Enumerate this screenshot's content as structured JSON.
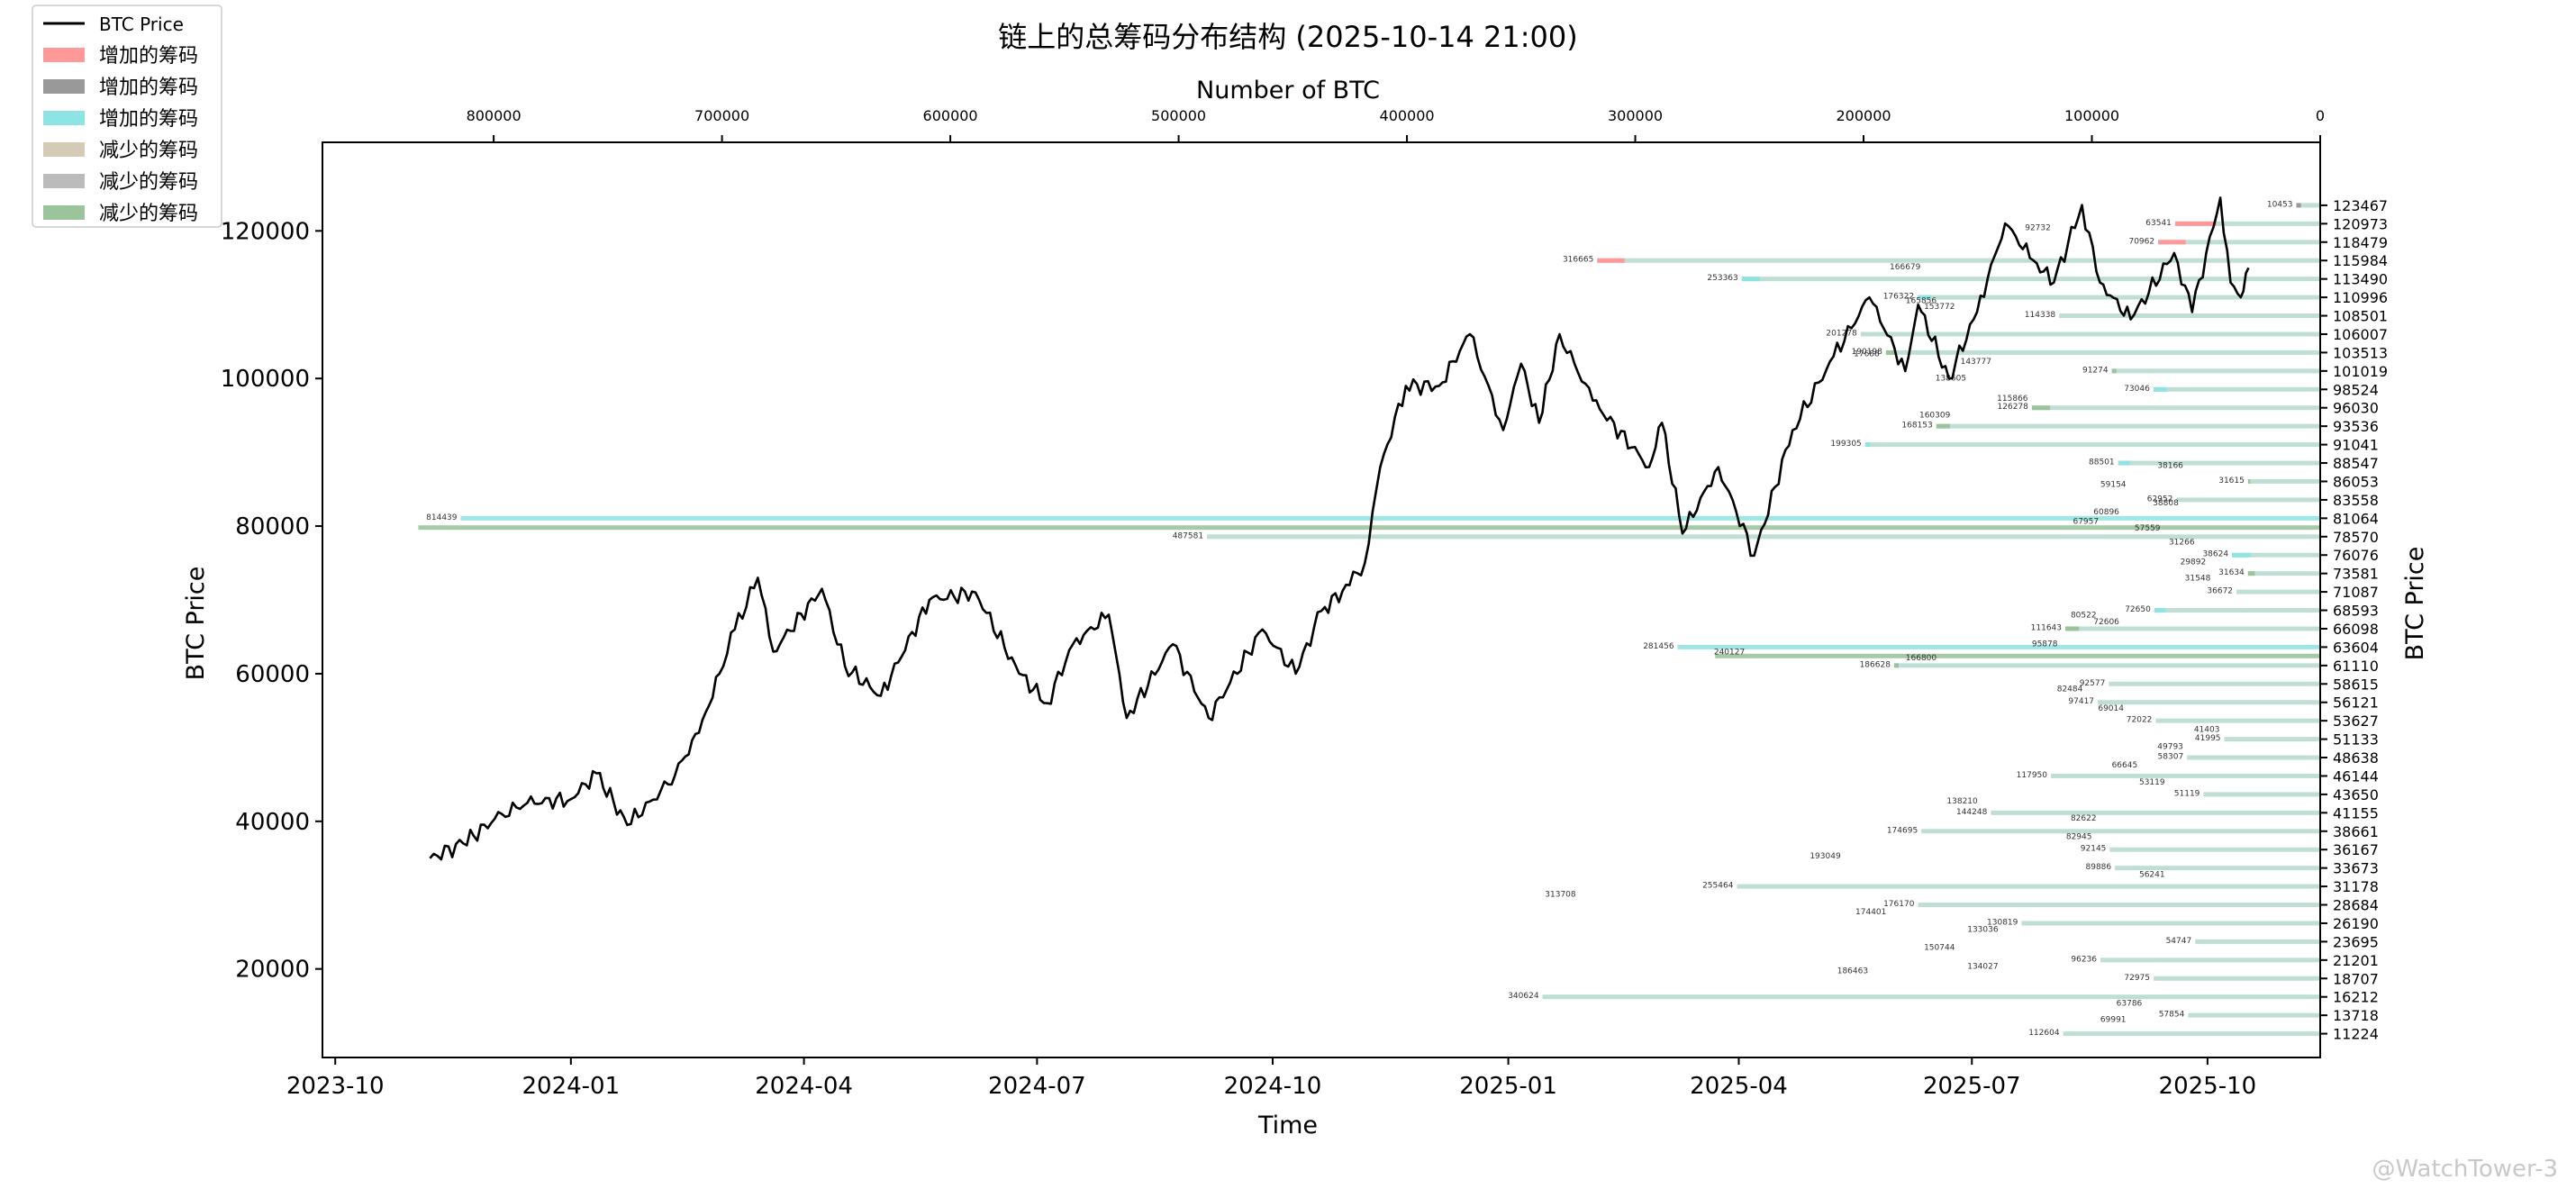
{
  "chart_data": {
    "type": "line",
    "title": "链上的总筹码分布结构 (2025-10-14 21:00)",
    "xlabel": "Time",
    "ylabel": "BTC Price",
    "ylabel_right": "BTC Price",
    "top_xlabel": "Number of BTC",
    "ylim": [
      8000,
      132000
    ],
    "xlim": [
      "2023-09-26",
      "2025-11-14"
    ],
    "top_xlim": [
      875000,
      0
    ],
    "x_ticks": [
      "2023-10",
      "2024-01",
      "2024-04",
      "2024-07",
      "2024-10",
      "2025-01",
      "2025-04",
      "2025-07",
      "2025-10"
    ],
    "x_tick_dates": [
      "2023-10-01",
      "2024-01-01",
      "2024-04-01",
      "2024-07-01",
      "2024-10-01",
      "2025-01-01",
      "2025-04-01",
      "2025-07-01",
      "2025-10-01"
    ],
    "y_ticks": [
      20000,
      40000,
      60000,
      80000,
      100000,
      120000
    ],
    "top_ticks": [
      800000,
      700000,
      600000,
      500000,
      400000,
      300000,
      200000,
      100000,
      0
    ],
    "legend": [
      {
        "label": "BTC Price",
        "kind": "line",
        "color": "#000000"
      },
      {
        "label": "增加的筹码",
        "kind": "patch",
        "color": "#ff9999"
      },
      {
        "label": "增加的筹码",
        "kind": "patch",
        "color": "#999999"
      },
      {
        "label": "增加的筹码",
        "kind": "patch",
        "color": "#8ee3e3"
      },
      {
        "label": "减少的筹码",
        "kind": "patch",
        "color": "#d3cbb6"
      },
      {
        "label": "减少的筹码",
        "kind": "patch",
        "color": "#bbbbbb"
      },
      {
        "label": "减少的筹码",
        "kind": "patch",
        "color": "#9cc49c"
      }
    ],
    "price_series": {
      "name": "BTC Price",
      "color": "#000000",
      "points": [
        [
          "2023-11-07",
          35000
        ],
        [
          "2023-11-20",
          37000
        ],
        [
          "2023-12-05",
          41000
        ],
        [
          "2023-12-15",
          42500
        ],
        [
          "2024-01-01",
          43000
        ],
        [
          "2024-01-11",
          46500
        ],
        [
          "2024-01-23",
          39500
        ],
        [
          "2024-02-08",
          45000
        ],
        [
          "2024-02-20",
          52000
        ],
        [
          "2024-02-28",
          60000
        ],
        [
          "2024-03-05",
          66000
        ],
        [
          "2024-03-14",
          73000
        ],
        [
          "2024-03-20",
          63000
        ],
        [
          "2024-04-08",
          71500
        ],
        [
          "2024-04-17",
          61000
        ],
        [
          "2024-05-01",
          57000
        ],
        [
          "2024-05-20",
          70000
        ],
        [
          "2024-06-07",
          71000
        ],
        [
          "2024-06-24",
          60000
        ],
        [
          "2024-07-05",
          56000
        ],
        [
          "2024-07-15",
          64000
        ],
        [
          "2024-07-29",
          68000
        ],
        [
          "2024-08-05",
          54000
        ],
        [
          "2024-08-23",
          64000
        ],
        [
          "2024-09-06",
          54000
        ],
        [
          "2024-09-27",
          66000
        ],
        [
          "2024-10-10",
          60000
        ],
        [
          "2024-10-20",
          68500
        ],
        [
          "2024-10-31",
          72000
        ],
        [
          "2024-11-06",
          75000
        ],
        [
          "2024-11-12",
          88000
        ],
        [
          "2024-11-22",
          99000
        ],
        [
          "2024-12-05",
          99000
        ],
        [
          "2024-12-17",
          106000
        ],
        [
          "2024-12-30",
          93000
        ],
        [
          "2025-01-06",
          102000
        ],
        [
          "2025-01-13",
          94000
        ],
        [
          "2025-01-21",
          106000
        ],
        [
          "2025-02-03",
          97000
        ],
        [
          "2025-02-25",
          88000
        ],
        [
          "2025-03-02",
          94000
        ],
        [
          "2025-03-10",
          79000
        ],
        [
          "2025-03-24",
          88000
        ],
        [
          "2025-04-07",
          76000
        ],
        [
          "2025-04-22",
          93000
        ],
        [
          "2025-05-08",
          103000
        ],
        [
          "2025-05-22",
          111000
        ],
        [
          "2025-06-05",
          101000
        ],
        [
          "2025-06-10",
          110000
        ],
        [
          "2025-06-22",
          100000
        ],
        [
          "2025-07-03",
          109000
        ],
        [
          "2025-07-14",
          121000
        ],
        [
          "2025-07-25",
          116000
        ],
        [
          "2025-08-02",
          113000
        ],
        [
          "2025-08-13",
          123500
        ],
        [
          "2025-08-20",
          113000
        ],
        [
          "2025-09-01",
          108000
        ],
        [
          "2025-09-18",
          117000
        ],
        [
          "2025-09-25",
          109000
        ],
        [
          "2025-10-06",
          124500
        ],
        [
          "2025-10-10",
          113000
        ],
        [
          "2025-10-14",
          111000
        ],
        [
          "2025-10-17",
          115000
        ]
      ]
    },
    "distribution_bars": [
      {
        "price": 123467,
        "btc": 10453,
        "added": 2000,
        "added_color": "#999999"
      },
      {
        "price": 120973,
        "btc": 63541,
        "added": 18000,
        "added_color": "#ff9999"
      },
      {
        "price": 118479,
        "btc": 70962,
        "added": 12000,
        "added_color": "#ff9999"
      },
      {
        "price": 115984,
        "btc": 316665,
        "added": 12000,
        "added_color": "#ff9999"
      },
      {
        "price": 113490,
        "btc": 253363,
        "added": 8000,
        "added_color": "#8ee3e3"
      },
      {
        "price": 110996,
        "btc": 176322,
        "added": 6000,
        "added_color": "#8ee3e3"
      },
      {
        "price": 108501,
        "btc": 114338,
        "added": 0
      },
      {
        "price": 106007,
        "btc": 201278,
        "added": 0
      },
      {
        "price": 103513,
        "btc": 190198,
        "added": 4000,
        "added_color": "#9cc49c"
      },
      {
        "price": 101019,
        "btc": 91274,
        "added": 2000,
        "added_color": "#9cc49c"
      },
      {
        "price": 98524,
        "btc": 73046,
        "added": 6000,
        "added_color": "#8ee3e3"
      },
      {
        "price": 96030,
        "btc": 126278,
        "added": 8000,
        "added_color": "#9cc49c"
      },
      {
        "price": 93536,
        "btc": 168153,
        "added": 6000,
        "added_color": "#9cc49c"
      },
      {
        "price": 91041,
        "btc": 199305,
        "added": 2000,
        "added_color": "#8ee3e3"
      },
      {
        "price": 88547,
        "btc": 88501,
        "added": 5000,
        "added_color": "#8ee3e3"
      },
      {
        "price": 86053,
        "btc": 31615,
        "added": 1000,
        "added_color": "#9cc49c"
      },
      {
        "price": 83558,
        "btc": 62952,
        "added": 0
      },
      {
        "price": 81064,
        "btc": 814439,
        "added": 0,
        "fill": "#8ee3e3"
      },
      {
        "price": 78570,
        "btc": 487581,
        "added": 0
      },
      {
        "price": 76076,
        "btc": 38624,
        "added": 8000,
        "added_color": "#8ee3e3"
      },
      {
        "price": 73581,
        "btc": 31634,
        "added": 3000,
        "added_color": "#9cc49c"
      },
      {
        "price": 71087,
        "btc": 36672,
        "added": 0
      },
      {
        "price": 68593,
        "btc": 72650,
        "added": 5000,
        "added_color": "#8ee3e3"
      },
      {
        "price": 66098,
        "btc": 111643,
        "added": 6000,
        "added_color": "#9cc49c"
      },
      {
        "price": 63604,
        "btc": 281456,
        "added": 0,
        "fill": "#8ee3e3"
      },
      {
        "price": 61110,
        "btc": 186628,
        "added": 2000,
        "added_color": "#9cc49c"
      },
      {
        "price": 58615,
        "btc": 92577,
        "added": 0
      },
      {
        "price": 56121,
        "btc": 97417,
        "added": 0
      },
      {
        "price": 53627,
        "btc": 72022,
        "added": 0
      },
      {
        "price": 51133,
        "btc": 41995,
        "added": 0
      },
      {
        "price": 48638,
        "btc": 58307,
        "added": 0
      },
      {
        "price": 46144,
        "btc": 117950,
        "added": 0
      },
      {
        "price": 43650,
        "btc": 51119,
        "added": 0
      },
      {
        "price": 41155,
        "btc": 144248,
        "added": 0
      },
      {
        "price": 38661,
        "btc": 174695,
        "added": 0
      },
      {
        "price": 36167,
        "btc": 92145,
        "added": 0
      },
      {
        "price": 33673,
        "btc": 89886,
        "added": 0
      },
      {
        "price": 31178,
        "btc": 255464,
        "added": 0
      },
      {
        "price": 28684,
        "btc": 176170,
        "added": 0
      },
      {
        "price": 26190,
        "btc": 130819,
        "added": 0
      },
      {
        "price": 23695,
        "btc": 54747,
        "added": 0
      },
      {
        "price": 21201,
        "btc": 96236,
        "added": 0
      },
      {
        "price": 18707,
        "btc": 72975,
        "added": 0
      },
      {
        "price": 16212,
        "btc": 340624,
        "added": 0
      },
      {
        "price": 13718,
        "btc": 57854,
        "added": 0
      },
      {
        "price": 11224,
        "btc": 112604,
        "added": 0
      }
    ],
    "extra_bars": [
      {
        "price": 79800,
        "btc": 833000,
        "fill": "#9cc49c"
      },
      {
        "price": 62400,
        "btc": 265000,
        "fill": "#9cc49c"
      }
    ],
    "floating_labels": [
      {
        "text": "92732",
        "price": 120100,
        "btc": 118000
      },
      {
        "text": "166679",
        "price": 114800,
        "btc": 175000
      },
      {
        "text": "165856",
        "price": 110200,
        "btc": 168000
      },
      {
        "text": "153772",
        "price": 109400,
        "btc": 160000
      },
      {
        "text": "17688",
        "price": 103000,
        "btc": 193000
      },
      {
        "text": "143777",
        "price": 102000,
        "btc": 144000
      },
      {
        "text": "138605",
        "price": 99700,
        "btc": 155000
      },
      {
        "text": "115866",
        "price": 97000,
        "btc": 128000
      },
      {
        "text": "160309",
        "price": 94700,
        "btc": 162000
      },
      {
        "text": "38166",
        "price": 87900,
        "btc": 60000
      },
      {
        "text": "59154",
        "price": 85300,
        "btc": 85000
      },
      {
        "text": "38808",
        "price": 82800,
        "btc": 62000
      },
      {
        "text": "60896",
        "price": 81600,
        "btc": 88000
      },
      {
        "text": "67957",
        "price": 80300,
        "btc": 97000
      },
      {
        "text": "57559",
        "price": 79400,
        "btc": 70000
      },
      {
        "text": "31266",
        "price": 77500,
        "btc": 55000
      },
      {
        "text": "29892",
        "price": 74800,
        "btc": 50000
      },
      {
        "text": "31548",
        "price": 72600,
        "btc": 48000
      },
      {
        "text": "80522",
        "price": 67600,
        "btc": 98000
      },
      {
        "text": "72606",
        "price": 66700,
        "btc": 88000
      },
      {
        "text": "240127",
        "price": 62600,
        "btc": 252000
      },
      {
        "text": "95878",
        "price": 63700,
        "btc": 115000
      },
      {
        "text": "166800",
        "price": 61800,
        "btc": 168000
      },
      {
        "text": "82484",
        "price": 57600,
        "btc": 104000
      },
      {
        "text": "69014",
        "price": 55000,
        "btc": 86000
      },
      {
        "text": "41403",
        "price": 52100,
        "btc": 44000
      },
      {
        "text": "49793",
        "price": 49800,
        "btc": 60000
      },
      {
        "text": "66645",
        "price": 47300,
        "btc": 80000
      },
      {
        "text": "53119",
        "price": 45000,
        "btc": 68000
      },
      {
        "text": "138210",
        "price": 42400,
        "btc": 150000
      },
      {
        "text": "82622",
        "price": 40100,
        "btc": 98000
      },
      {
        "text": "82945",
        "price": 37600,
        "btc": 100000
      },
      {
        "text": "193049",
        "price": 35000,
        "btc": 210000
      },
      {
        "text": "56241",
        "price": 32500,
        "btc": 68000
      },
      {
        "text": "313708",
        "price": 29800,
        "btc": 326000
      },
      {
        "text": "174401",
        "price": 27400,
        "btc": 190000
      },
      {
        "text": "133036",
        "price": 25000,
        "btc": 141000
      },
      {
        "text": "150744",
        "price": 22600,
        "btc": 160000
      },
      {
        "text": "134027",
        "price": 20000,
        "btc": 141000
      },
      {
        "text": "186463",
        "price": 19400,
        "btc": 198000
      },
      {
        "text": "63786",
        "price": 15000,
        "btc": 78000
      },
      {
        "text": "69991",
        "price": 12800,
        "btc": 85000
      }
    ]
  },
  "watermark": "@WatchTower-3"
}
